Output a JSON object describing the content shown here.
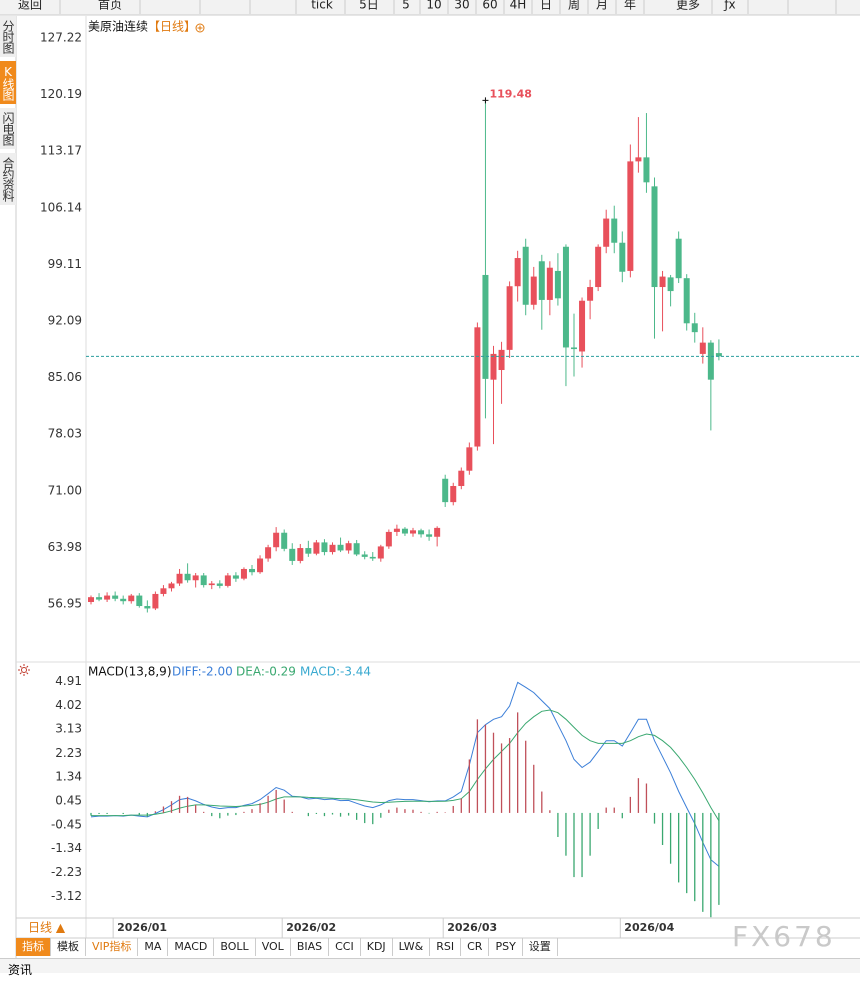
{
  "toolbar": [
    "返回",
    "首页",
    "tick",
    "5日",
    "5",
    "10",
    "30",
    "60",
    "4H",
    "日",
    "周",
    "月",
    "年",
    "更多",
    "ƒx"
  ],
  "sidebar": [
    "分时图",
    "K线图",
    "闪电图",
    "合约资料"
  ],
  "sidebar_active": 1,
  "period_selector": "日线 ▲",
  "indicator_tabs": [
    "指标",
    "模板",
    "VIP指标",
    "MA",
    "MACD",
    "BOLL",
    "VOL",
    "BIAS",
    "CCI",
    "KDJ",
    "LW&",
    "RSI",
    "CR",
    "PSY",
    "设置"
  ],
  "indicator_tab_active": 0,
  "indicator_tab_highlight": 2,
  "footer_tab": "资讯",
  "watermark": "FX678",
  "chart_data": [
    {
      "type": "candlestick",
      "title": "美原油连续",
      "period": "【日线】",
      "categories": [
        null,
        null,
        null,
        "2026/01",
        null,
        null,
        null,
        null,
        null,
        null,
        null,
        null,
        null,
        null,
        null,
        null,
        null,
        null,
        null,
        null,
        null,
        null,
        null,
        null,
        "2026/02",
        null,
        null,
        null,
        null,
        null,
        null,
        null,
        null,
        null,
        null,
        null,
        null,
        null,
        null,
        null,
        null,
        null,
        null,
        null,
        "2026/03",
        null,
        null,
        null,
        null,
        null,
        null,
        null,
        null,
        null,
        null,
        null,
        null,
        null,
        null,
        null,
        null,
        null,
        null,
        null,
        null,
        null,
        "2026/04",
        null,
        null,
        null,
        null,
        null,
        null,
        null,
        null,
        null,
        null,
        null,
        null
      ],
      "open": [
        57.2,
        57.8,
        57.5,
        58.0,
        57.6,
        57.3,
        58.0,
        56.7,
        56.4,
        58.2,
        58.9,
        59.5,
        60.7,
        59.9,
        60.5,
        59.3,
        59.5,
        59.2,
        60.5,
        60.1,
        61.3,
        60.9,
        62.6,
        64.0,
        65.8,
        63.8,
        62.3,
        63.9,
        63.2,
        64.6,
        63.4,
        64.3,
        63.6,
        64.5,
        63.1,
        62.8,
        62.6,
        64.1,
        65.9,
        66.3,
        65.7,
        66.1,
        65.6,
        65.3,
        72.5,
        69.6,
        71.6,
        73.5,
        76.5,
        97.8,
        84.8,
        86.0,
        88.5,
        96.4,
        101.3,
        94.1,
        99.5,
        94.7,
        98.3,
        101.3,
        88.8,
        88.3,
        94.6,
        96.3,
        101.3,
        104.8,
        101.8,
        98.3,
        111.9,
        112.4,
        108.8,
        96.3,
        97.5,
        102.3,
        97.4,
        91.8,
        88.0,
        89.4,
        88.1
      ],
      "high": [
        58.0,
        58.3,
        58.4,
        58.5,
        58.0,
        58.2,
        58.3,
        57.4,
        58.5,
        59.3,
        59.7,
        61.3,
        62.0,
        60.8,
        60.8,
        59.8,
        59.9,
        60.8,
        60.9,
        61.5,
        61.8,
        63.0,
        64.3,
        66.5,
        66.2,
        64.5,
        64.4,
        64.8,
        64.9,
        65.0,
        64.6,
        65.2,
        64.8,
        64.9,
        63.5,
        63.4,
        64.3,
        66.2,
        66.8,
        66.5,
        66.4,
        66.3,
        66.2,
        66.6,
        73.0,
        72.0,
        73.9,
        77.0,
        91.9,
        119.48,
        89.0,
        89.5,
        97.0,
        100.8,
        102.3,
        98.8,
        100.3,
        99.5,
        100.5,
        101.6,
        93.0,
        95.0,
        97.2,
        101.6,
        105.9,
        106.4,
        103.2,
        114.0,
        117.4,
        117.9,
        109.9,
        98.3,
        97.8,
        103.2,
        97.9,
        93.1,
        91.3,
        89.7,
        89.8
      ],
      "low": [
        56.9,
        57.3,
        57.2,
        57.3,
        56.9,
        57.0,
        56.5,
        55.9,
        56.2,
        57.9,
        58.5,
        59.2,
        59.6,
        59.0,
        59.0,
        58.8,
        58.9,
        59.0,
        59.7,
        59.9,
        60.5,
        60.7,
        62.2,
        63.5,
        63.5,
        61.8,
        62.0,
        62.8,
        63.0,
        63.0,
        63.1,
        63.4,
        63.2,
        62.9,
        62.5,
        62.3,
        62.2,
        63.8,
        65.4,
        65.4,
        65.3,
        65.2,
        64.8,
        64.1,
        69.0,
        69.2,
        71.2,
        73.0,
        76.0,
        80.0,
        76.8,
        81.8,
        87.5,
        94.5,
        92.8,
        93.5,
        91.0,
        92.8,
        94.0,
        84.0,
        85.2,
        86.3,
        92.3,
        95.8,
        100.5,
        100.5,
        96.9,
        97.5,
        110.5,
        108.0,
        89.9,
        90.8,
        93.9,
        96.8,
        90.9,
        89.4,
        86.8,
        78.5,
        87.2
      ],
      "close": [
        57.8,
        57.5,
        58.0,
        57.6,
        57.3,
        58.0,
        56.7,
        56.4,
        58.2,
        58.9,
        59.5,
        60.7,
        59.9,
        60.5,
        59.3,
        59.5,
        59.2,
        60.5,
        60.1,
        61.3,
        60.9,
        62.6,
        64.0,
        65.8,
        63.8,
        62.3,
        63.9,
        63.2,
        64.6,
        63.4,
        64.3,
        63.6,
        64.5,
        63.1,
        62.8,
        62.6,
        64.1,
        65.9,
        66.3,
        65.7,
        66.1,
        65.6,
        65.3,
        66.4,
        69.6,
        71.6,
        73.5,
        76.4,
        91.3,
        84.9,
        88.0,
        88.5,
        96.4,
        99.9,
        94.1,
        97.6,
        94.7,
        98.7,
        94.9,
        88.8,
        88.6,
        94.6,
        96.3,
        101.3,
        104.8,
        101.8,
        98.2,
        111.9,
        112.4,
        109.3,
        96.3,
        97.6,
        95.8,
        97.4,
        91.8,
        90.7,
        89.4,
        84.8,
        87.7
      ],
      "up_color": "#e8505b",
      "down_color": "#4cb88a",
      "last_price_color": "#2a9d9d",
      "annotation_index": 49,
      "annotation_color": "#e8505b",
      "ylim": [
        50.0,
        129.7
      ],
      "yticks": [
        56.95,
        63.98,
        {
          "value": 71,
          "label": "71.00"
        },
        78.03,
        85.06,
        92.09,
        99.11,
        106.14,
        113.17,
        120.19,
        127.22
      ],
      "grid": false
    },
    {
      "type": "macd",
      "title": "MACD(13,8,9)",
      "series": [
        {
          "name": "DIFF:-2.00",
          "color": "#3c7fd8",
          "kind": "line",
          "values": [
            -0.15,
            -0.12,
            -0.12,
            -0.1,
            -0.12,
            -0.08,
            -0.12,
            -0.15,
            -0.02,
            0.12,
            0.3,
            0.5,
            0.55,
            0.45,
            0.32,
            0.22,
            0.16,
            0.2,
            0.2,
            0.28,
            0.35,
            0.5,
            0.72,
            0.95,
            0.85,
            0.62,
            0.6,
            0.52,
            0.55,
            0.5,
            0.52,
            0.46,
            0.47,
            0.36,
            0.26,
            0.2,
            0.3,
            0.46,
            0.52,
            0.5,
            0.5,
            0.46,
            0.42,
            0.45,
            0.45,
            0.6,
            0.8,
            1.8,
            3.0,
            3.3,
            3.5,
            3.6,
            4.0,
            4.88,
            4.7,
            4.5,
            4.2,
            3.9,
            3.3,
            2.7,
            2.0,
            1.7,
            1.9,
            2.3,
            2.7,
            2.7,
            2.5,
            3.0,
            3.5,
            3.5,
            2.7,
            2.1,
            1.5,
            0.8,
            0.2,
            -0.4,
            -1.1,
            -1.75,
            -2.0
          ]
        },
        {
          "name": "DEA:-0.29",
          "color": "#3aa870",
          "kind": "line",
          "values": [
            -0.1,
            -0.1,
            -0.1,
            -0.1,
            -0.1,
            -0.08,
            -0.08,
            -0.08,
            -0.05,
            0.0,
            0.08,
            0.18,
            0.25,
            0.3,
            0.3,
            0.28,
            0.26,
            0.25,
            0.24,
            0.26,
            0.28,
            0.32,
            0.4,
            0.52,
            0.6,
            0.6,
            0.6,
            0.58,
            0.57,
            0.56,
            0.55,
            0.53,
            0.52,
            0.49,
            0.45,
            0.41,
            0.39,
            0.4,
            0.42,
            0.43,
            0.44,
            0.44,
            0.43,
            0.43,
            0.44,
            0.47,
            0.53,
            0.8,
            1.25,
            1.65,
            2.0,
            2.3,
            2.6,
            3.0,
            3.35,
            3.6,
            3.8,
            3.85,
            3.75,
            3.5,
            3.2,
            2.9,
            2.7,
            2.6,
            2.6,
            2.6,
            2.6,
            2.7,
            2.85,
            2.95,
            2.9,
            2.7,
            2.45,
            2.1,
            1.7,
            1.25,
            0.75,
            0.2,
            -0.29
          ]
        },
        {
          "name": "MACD:-3.44",
          "color": "#3aaad0",
          "kind": "histogram",
          "values": [
            -0.1,
            -0.04,
            -0.04,
            0.0,
            -0.04,
            0.0,
            -0.08,
            -0.14,
            0.06,
            0.24,
            0.44,
            0.64,
            0.6,
            0.3,
            0.04,
            -0.12,
            -0.2,
            -0.1,
            -0.08,
            0.04,
            0.14,
            0.36,
            0.64,
            0.86,
            0.5,
            0.04,
            0.0,
            -0.12,
            -0.04,
            -0.12,
            -0.06,
            -0.14,
            -0.1,
            -0.26,
            -0.38,
            -0.42,
            -0.18,
            0.12,
            0.2,
            0.14,
            0.12,
            0.04,
            -0.02,
            0.04,
            0.02,
            0.26,
            0.54,
            2.0,
            3.5,
            3.3,
            3.0,
            2.6,
            2.8,
            3.76,
            2.7,
            1.8,
            0.8,
            0.1,
            -0.9,
            -1.6,
            -2.4,
            -2.4,
            -1.6,
            -0.6,
            0.2,
            0.2,
            -0.2,
            0.6,
            1.3,
            1.1,
            -0.4,
            -1.2,
            -1.9,
            -2.6,
            -3.0,
            -3.3,
            -3.7,
            -3.9,
            -3.44
          ]
        }
      ],
      "up_color": "#c0505a",
      "down_color": "#3aa870",
      "ylim": [
        -3.93,
        5.42
      ],
      "yticks": [
        -3.12,
        -2.23,
        -1.34,
        -0.45,
        0.45,
        1.34,
        2.23,
        3.13,
        4.02,
        4.91
      ],
      "grid": false
    }
  ]
}
